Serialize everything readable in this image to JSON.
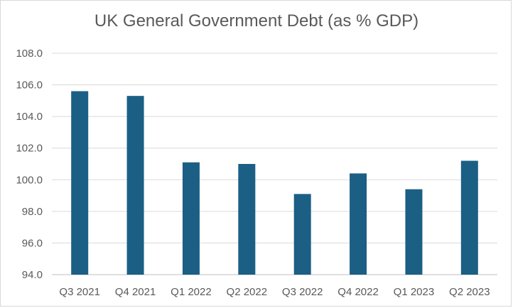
{
  "chart_data": {
    "type": "bar",
    "title": "UK General Government Debt (as % GDP)",
    "xlabel": "",
    "ylabel": "",
    "categories": [
      "Q3 2021",
      "Q4 2021",
      "Q1 2022",
      "Q2 2022",
      "Q3 2022",
      "Q4 2022",
      "Q1 2023",
      "Q2 2023"
    ],
    "values": [
      105.6,
      105.3,
      101.1,
      101.0,
      99.1,
      100.4,
      99.4,
      101.2
    ],
    "ylim": [
      94.0,
      108.0
    ],
    "yticks": [
      "94.0",
      "96.0",
      "98.0",
      "100.0",
      "102.0",
      "104.0",
      "106.0",
      "108.0"
    ],
    "bar_color": "#1b5f85",
    "grid": true,
    "legend": "none"
  }
}
